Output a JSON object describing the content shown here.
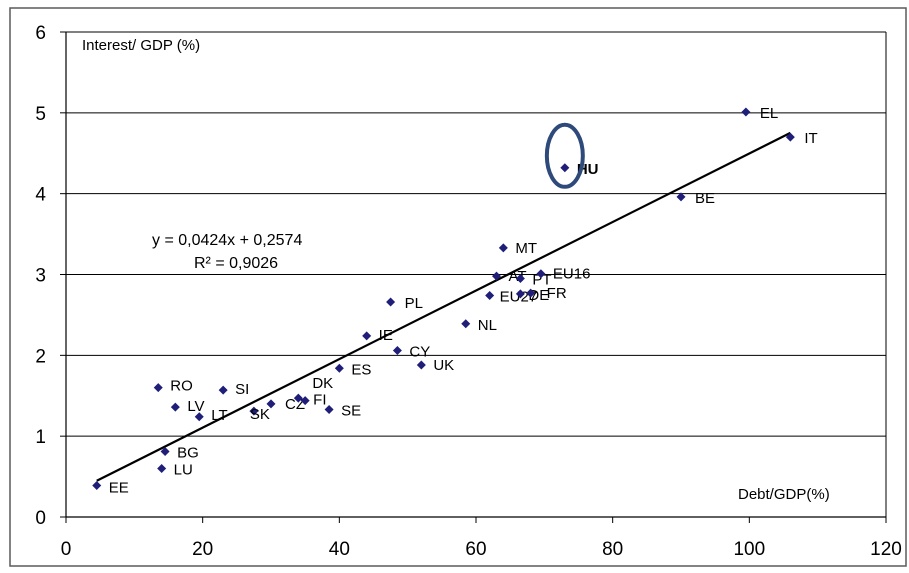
{
  "chart_data": {
    "type": "scatter",
    "ylabel": "Interest/ GDP (%)",
    "xlabel": "Debt/GDP(%)",
    "xlim": [
      0,
      120
    ],
    "ylim": [
      0,
      6
    ],
    "x_ticks": [
      "0",
      "20",
      "40",
      "60",
      "80",
      "100",
      "120"
    ],
    "y_ticks": [
      "0",
      "1",
      "2",
      "3",
      "4",
      "5",
      "6"
    ],
    "grid": "horizontal",
    "marker_color": "#1f1f7a",
    "highlight_color": "#2e4a7a",
    "trendline": {
      "slope": 0.0424,
      "intercept": 0.2574,
      "x_range": [
        4.5,
        106
      ],
      "equation": "y = 0,0424x + 0,2574",
      "r_squared": "R² = 0,9026"
    },
    "points": [
      {
        "label": "EE",
        "x": 4.5,
        "y": 0.39
      },
      {
        "label": "LU",
        "x": 14,
        "y": 0.6
      },
      {
        "label": "BG",
        "x": 14.5,
        "y": 0.81
      },
      {
        "label": "RO",
        "x": 13.5,
        "y": 1.6
      },
      {
        "label": "LV",
        "x": 16,
        "y": 1.36
      },
      {
        "label": "LT",
        "x": 19.5,
        "y": 1.24
      },
      {
        "label": "SI",
        "x": 23,
        "y": 1.57
      },
      {
        "label": "SK",
        "x": 27.5,
        "y": 1.31
      },
      {
        "label": "CZ",
        "x": 30,
        "y": 1.4
      },
      {
        "label": "DK",
        "x": 34,
        "y": 1.47
      },
      {
        "label": "FI",
        "x": 35,
        "y": 1.44
      },
      {
        "label": "SE",
        "x": 38.5,
        "y": 1.33
      },
      {
        "label": "ES",
        "x": 40,
        "y": 1.84
      },
      {
        "label": "IE",
        "x": 44,
        "y": 2.24
      },
      {
        "label": "CY",
        "x": 48.5,
        "y": 2.06
      },
      {
        "label": "UK",
        "x": 52,
        "y": 1.88
      },
      {
        "label": "PL",
        "x": 47.5,
        "y": 2.66
      },
      {
        "label": "NL",
        "x": 58.5,
        "y": 2.39
      },
      {
        "label": "MT",
        "x": 64,
        "y": 3.33
      },
      {
        "label": "AT",
        "x": 63,
        "y": 2.98
      },
      {
        "label": "PT",
        "x": 66.5,
        "y": 2.95
      },
      {
        "label": "EU27",
        "x": 62,
        "y": 2.74
      },
      {
        "label": "DE",
        "x": 66.5,
        "y": 2.76
      },
      {
        "label": "FR",
        "x": 68,
        "y": 2.77
      },
      {
        "label": "EU16",
        "x": 69.5,
        "y": 3.01
      },
      {
        "label": "HU",
        "x": 73,
        "y": 4.32,
        "highlight": true
      },
      {
        "label": "BE",
        "x": 90,
        "y": 3.96
      },
      {
        "label": "EL",
        "x": 99.5,
        "y": 5.01
      },
      {
        "label": "IT",
        "x": 106,
        "y": 4.7
      }
    ]
  }
}
